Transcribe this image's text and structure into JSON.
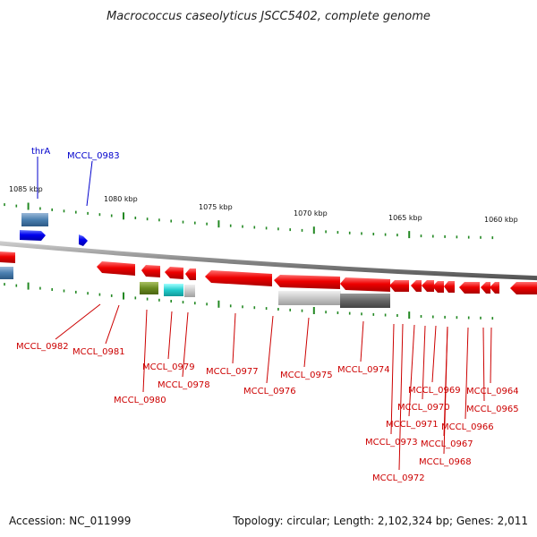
{
  "title": "Macrococcus caseolyticus JSCC5402, complete genome",
  "accession": "Accession: NC_011999",
  "summary": "Topology: circular; Length: 2,102,324 bp; Genes: 2,011",
  "colors": {
    "forward_gene": "#0000ee",
    "reverse_gene": "#ee0000",
    "blue_label": "#0000cc",
    "red_label": "#cc0000",
    "ticks": "#228822",
    "backbone": "#999999"
  },
  "kbp_labels": [
    "1085 kbp",
    "1080 kbp",
    "1075 kbp",
    "1070 kbp",
    "1065 kbp",
    "1060 kbp"
  ],
  "forward_labels": [
    "thrA",
    "MCCL_0983"
  ],
  "reverse_labels": [
    "MCCL_0982",
    "MCCL_0981",
    "MCCL_0980",
    "MCCL_0979",
    "MCCL_0978",
    "MCCL_0977",
    "MCCL_0976",
    "MCCL_0975",
    "MCCL_0974",
    "MCCL_0973",
    "MCCL_0972",
    "MCCL_0971",
    "MCCL_0970",
    "MCCL_0969",
    "MCCL_0968",
    "MCCL_0967",
    "MCCL_0966",
    "MCCL_0965",
    "MCCL_0964"
  ]
}
